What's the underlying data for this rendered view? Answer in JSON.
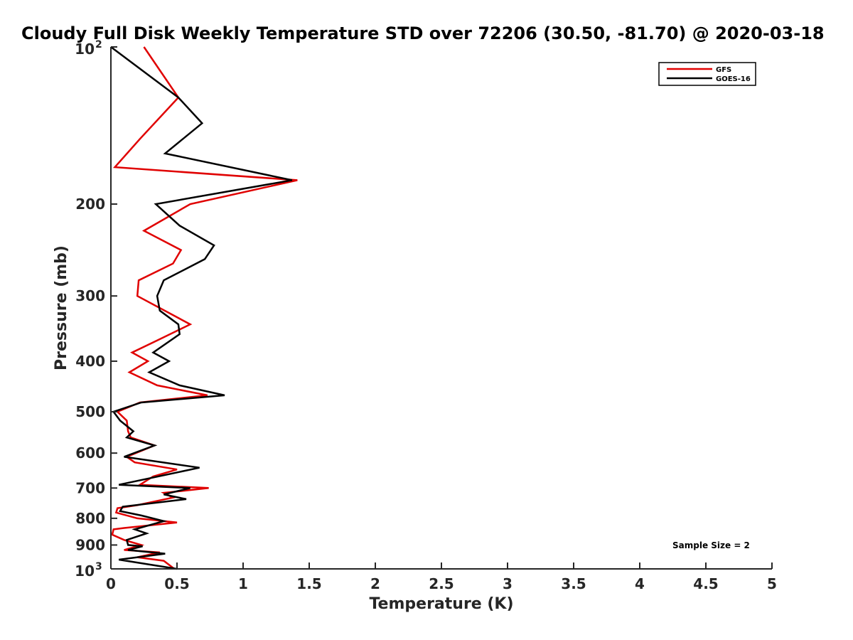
{
  "chart_data": {
    "type": "line",
    "title": "Cloudy Full Disk Weekly Temperature STD over 72206 (30.50, -81.70) @ 2020-03-18",
    "xlabel": "Temperature (K)",
    "ylabel": "Pressure (mb)",
    "xlim": [
      0,
      5
    ],
    "ylim": [
      100,
      1000
    ],
    "yscale": "log",
    "y_reversed": true,
    "grid": false,
    "legend_position": "top-right",
    "x_ticks": [
      "0",
      "0.5",
      "1",
      "1.5",
      "2",
      "2.5",
      "3",
      "3.5",
      "4",
      "4.5",
      "5"
    ],
    "x_tick_values": [
      0,
      0.5,
      1,
      1.5,
      2,
      2.5,
      3,
      3.5,
      4,
      4.5,
      5
    ],
    "y_ticks": [
      {
        "value": 100,
        "base": "10",
        "exp": "2"
      },
      {
        "value": 200,
        "label": "200"
      },
      {
        "value": 300,
        "label": "300"
      },
      {
        "value": 400,
        "label": "400"
      },
      {
        "value": 500,
        "label": "500"
      },
      {
        "value": 600,
        "label": "600"
      },
      {
        "value": 700,
        "label": "700"
      },
      {
        "value": 800,
        "label": "800"
      },
      {
        "value": 900,
        "label": "900"
      },
      {
        "value": 1000,
        "base": "10",
        "exp": "3"
      }
    ],
    "series": [
      {
        "name": "GFS",
        "color": "#e00000",
        "points": [
          [
            0.25,
            100
          ],
          [
            0.51,
            125
          ],
          [
            0.22,
            150
          ],
          [
            0.03,
            170
          ],
          [
            1.41,
            180
          ],
          [
            0.6,
            200
          ],
          [
            0.25,
            225
          ],
          [
            0.53,
            245
          ],
          [
            0.47,
            260
          ],
          [
            0.21,
            280
          ],
          [
            0.2,
            300
          ],
          [
            0.6,
            340
          ],
          [
            0.35,
            365
          ],
          [
            0.16,
            385
          ],
          [
            0.28,
            400
          ],
          [
            0.14,
            420
          ],
          [
            0.35,
            445
          ],
          [
            0.73,
            465
          ],
          [
            0.22,
            480
          ],
          [
            0.05,
            500
          ],
          [
            0.12,
            520
          ],
          [
            0.13,
            545
          ],
          [
            0.15,
            560
          ],
          [
            0.33,
            580
          ],
          [
            0.12,
            610
          ],
          [
            0.18,
            625
          ],
          [
            0.5,
            645
          ],
          [
            0.32,
            665
          ],
          [
            0.22,
            690
          ],
          [
            0.74,
            700
          ],
          [
            0.4,
            715
          ],
          [
            0.47,
            730
          ],
          [
            0.2,
            755
          ],
          [
            0.05,
            765
          ],
          [
            0.04,
            780
          ],
          [
            0.2,
            800
          ],
          [
            0.5,
            815
          ],
          [
            0.1,
            835
          ],
          [
            0.02,
            840
          ],
          [
            0.01,
            860
          ],
          [
            0.1,
            880
          ],
          [
            0.23,
            900
          ],
          [
            0.1,
            920
          ],
          [
            0.37,
            930
          ],
          [
            0.2,
            950
          ],
          [
            0.4,
            965
          ],
          [
            0.48,
            1000
          ]
        ]
      },
      {
        "name": "GOES-16",
        "color": "#000000",
        "points": [
          [
            0,
            100
          ],
          [
            0.51,
            125
          ],
          [
            0.69,
            140
          ],
          [
            0.41,
            160
          ],
          [
            1.37,
            180
          ],
          [
            0.34,
            200
          ],
          [
            0.52,
            220
          ],
          [
            0.78,
            240
          ],
          [
            0.71,
            255
          ],
          [
            0.4,
            280
          ],
          [
            0.35,
            300
          ],
          [
            0.37,
            320
          ],
          [
            0.51,
            340
          ],
          [
            0.52,
            355
          ],
          [
            0.32,
            385
          ],
          [
            0.44,
            400
          ],
          [
            0.29,
            420
          ],
          [
            0.52,
            445
          ],
          [
            0.86,
            465
          ],
          [
            0.23,
            480
          ],
          [
            0.02,
            500
          ],
          [
            0.07,
            520
          ],
          [
            0.17,
            545
          ],
          [
            0.12,
            560
          ],
          [
            0.33,
            580
          ],
          [
            0.1,
            610
          ],
          [
            0.67,
            640
          ],
          [
            0.06,
            690
          ],
          [
            0.6,
            700
          ],
          [
            0.4,
            720
          ],
          [
            0.57,
            735
          ],
          [
            0.09,
            760
          ],
          [
            0.07,
            775
          ],
          [
            0.23,
            790
          ],
          [
            0.4,
            810
          ],
          [
            0.18,
            840
          ],
          [
            0.27,
            855
          ],
          [
            0.12,
            880
          ],
          [
            0.13,
            900
          ],
          [
            0.24,
            905
          ],
          [
            0.13,
            920
          ],
          [
            0.41,
            935
          ],
          [
            0.06,
            960
          ],
          [
            0.5,
            1000
          ]
        ]
      }
    ],
    "annotations": [
      "Sample Size = 2"
    ]
  }
}
